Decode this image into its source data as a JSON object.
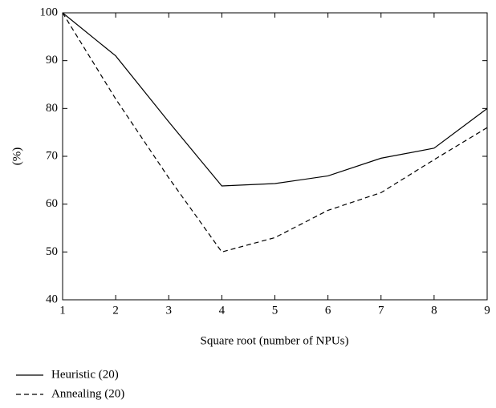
{
  "chart_data": {
    "type": "line",
    "x_label": "Square root (number of NPUs)",
    "y_label": "(%)",
    "x": [
      1,
      2,
      3,
      4,
      5,
      6,
      7,
      8,
      9
    ],
    "series": [
      {
        "name": "Heuristic (20)",
        "color": "#000000",
        "style": "solid",
        "values": [
          100,
          91,
          77.2,
          63.8,
          64.3,
          65.9,
          69.6,
          71.7,
          80
        ]
      },
      {
        "name": "Annealing (20)",
        "color": "#000000",
        "style": "dashed",
        "values": [
          100,
          82,
          65.5,
          50,
          53,
          58.7,
          62.4,
          69.3,
          76
        ]
      }
    ],
    "xlim": [
      1,
      9
    ],
    "xticks": [
      1,
      2,
      3,
      4,
      5,
      6,
      7,
      8,
      9
    ],
    "ylim": [
      40,
      100
    ],
    "yticks": [
      40,
      50,
      60,
      70,
      80,
      90,
      100
    ],
    "grid": false,
    "legend": "below"
  }
}
